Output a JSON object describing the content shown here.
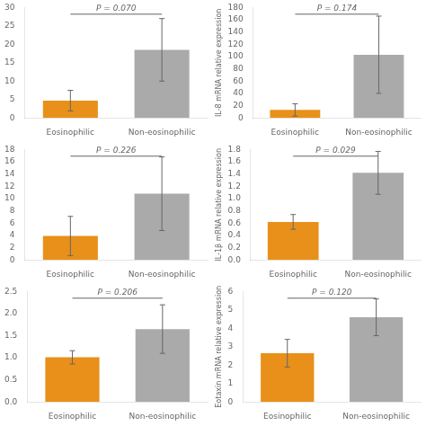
{
  "chart_data": [
    {
      "type": "bar",
      "annotation": "P = 0.070",
      "categories": [
        "Eosinophilic",
        "Non-eosinophilic"
      ],
      "values": [
        4.7,
        18.5
      ],
      "errors": [
        2.8,
        8.5
      ],
      "colors": [
        "#E8901A",
        "#AAAAAA"
      ],
      "ylim": [
        0,
        30
      ],
      "yticks": [
        0,
        5,
        10,
        15,
        20,
        25,
        30
      ],
      "grid": false
    },
    {
      "type": "bar",
      "annotation": "P = 0.174",
      "ylabel": "IL-8 mRNA relative expression",
      "categories": [
        "Eosinophilic",
        "Non-eosinophilic"
      ],
      "values": [
        13.0,
        103.0
      ],
      "errors": [
        10.0,
        63.0
      ],
      "colors": [
        "#E8901A",
        "#AAAAAA"
      ],
      "ylim": [
        0,
        180
      ],
      "yticks": [
        0,
        20,
        40,
        60,
        80,
        100,
        120,
        140,
        160,
        180
      ],
      "grid": false
    },
    {
      "type": "bar",
      "annotation": "P = 0.226",
      "categories": [
        "Eosinophilic",
        "Non-eosinophilic"
      ],
      "values": [
        3.9,
        10.8
      ],
      "errors": [
        3.2,
        6.0
      ],
      "colors": [
        "#E8901A",
        "#AAAAAA"
      ],
      "ylim": [
        0,
        18
      ],
      "yticks": [
        0,
        2,
        4,
        6,
        8,
        10,
        12,
        14,
        16,
        18
      ],
      "grid": false
    },
    {
      "type": "bar",
      "annotation": "P = 0.029",
      "ylabel": "IL-1β mRNA relative expression",
      "categories": [
        "Eosinophilic",
        "Non-eosinophilic"
      ],
      "values": [
        0.62,
        1.42
      ],
      "errors": [
        0.12,
        0.35
      ],
      "colors": [
        "#E8901A",
        "#AAAAAA"
      ],
      "ylim": [
        0,
        1.8
      ],
      "yticks": [
        {
          "value": 0,
          "label": "0.0"
        },
        0.2,
        0.4,
        0.6,
        0.8,
        {
          "value": 1,
          "label": "1.0"
        },
        1.2,
        1.4,
        1.6,
        1.8
      ],
      "grid": false
    },
    {
      "type": "bar",
      "annotation": "P = 0.206",
      "categories": [
        "Eosinophilic",
        "Non-eosinophilic"
      ],
      "values": [
        1.01,
        1.65
      ],
      "errors": [
        0.15,
        0.55
      ],
      "colors": [
        "#E8901A",
        "#AAAAAA"
      ],
      "ylim": [
        0,
        2.5
      ],
      "yticks": [
        {
          "value": 0,
          "label": "0.0"
        },
        0.5,
        {
          "value": 1,
          "label": "1.0"
        },
        1.5,
        {
          "value": 2,
          "label": "2.0"
        },
        2.5
      ],
      "grid": false
    },
    {
      "type": "bar",
      "annotation": "P = 0.120",
      "ylabel": "Eotaxin mRNA relative expression",
      "categories": [
        "Eosinophilic",
        "Non-eosinophilic"
      ],
      "values": [
        2.65,
        4.6
      ],
      "errors": [
        0.75,
        1.0
      ],
      "colors": [
        "#E8901A",
        "#AAAAAA"
      ],
      "ylim": [
        0,
        6
      ],
      "yticks": [
        0,
        1,
        2,
        3,
        4,
        5,
        6
      ],
      "grid": false
    }
  ]
}
